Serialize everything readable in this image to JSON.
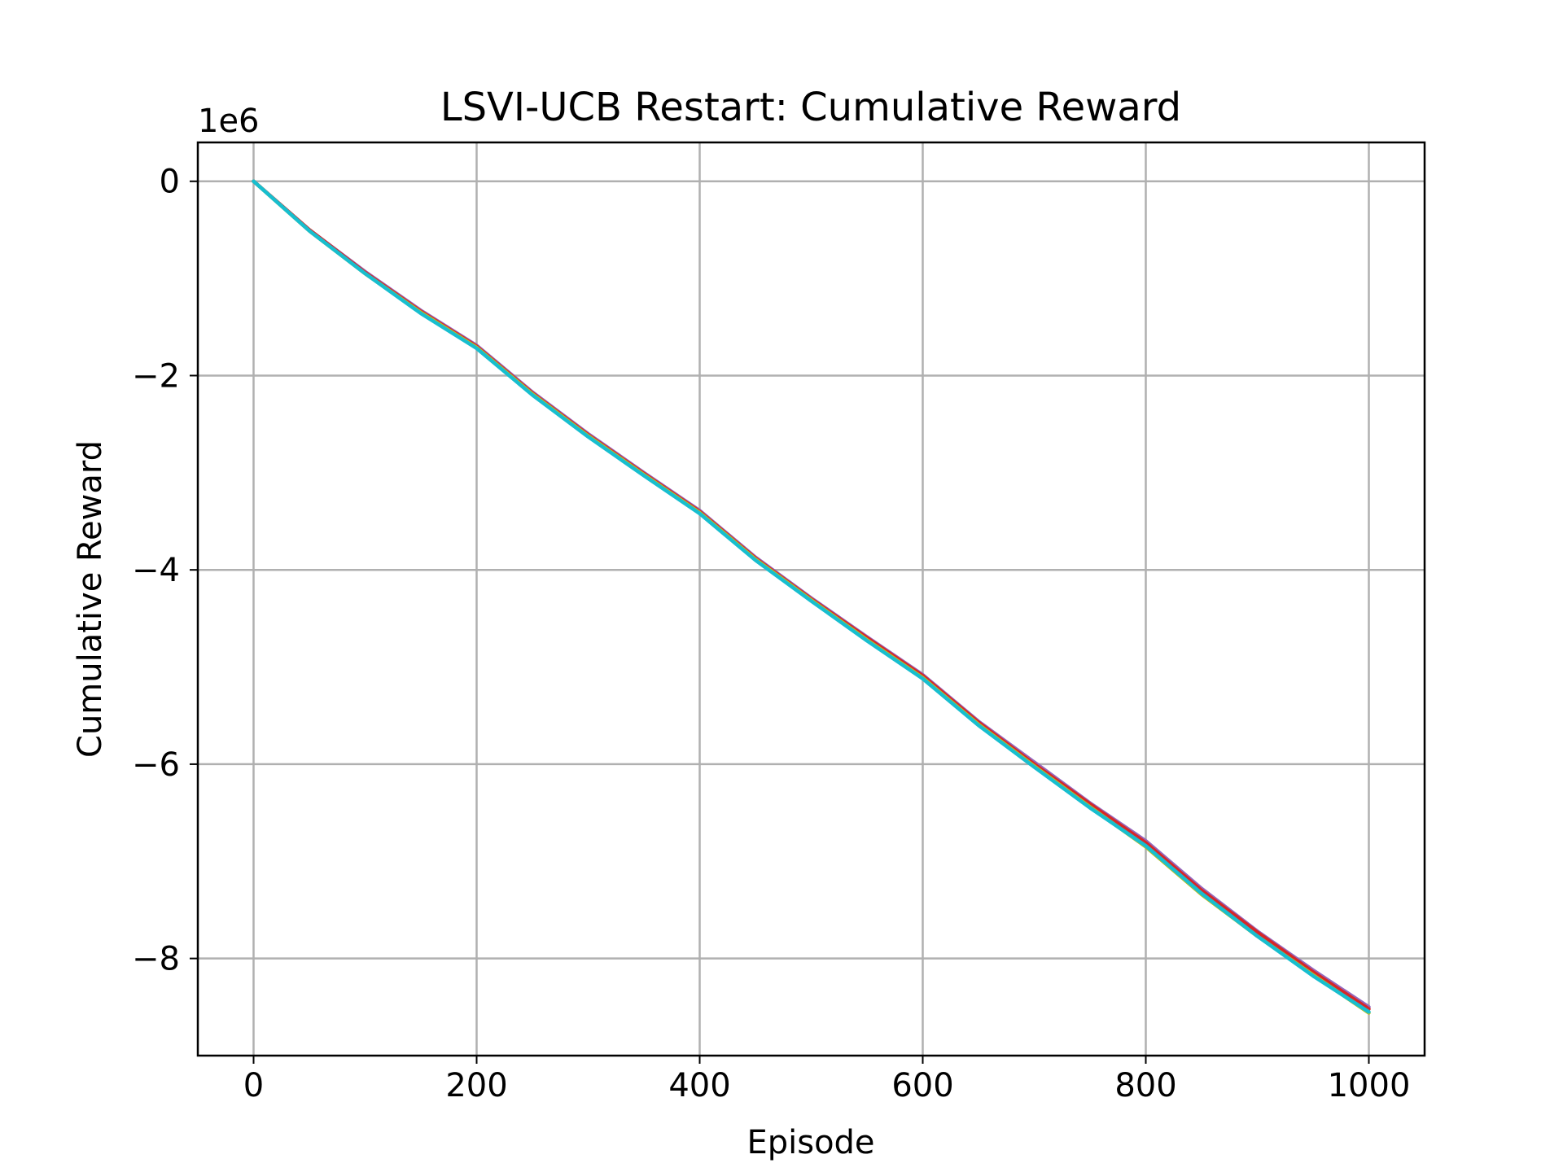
{
  "chart_data": {
    "type": "line",
    "title": "LSVI-UCB Restart: Cumulative Reward",
    "xlabel": "Episode",
    "ylabel": "Cumulative Reward",
    "y_scale_label": "1e6",
    "xlim": [
      -50,
      1050
    ],
    "ylim": [
      -9.0,
      0.4
    ],
    "x_ticks": [
      0,
      200,
      400,
      600,
      800,
      1000
    ],
    "x_tick_labels": [
      "0",
      "200",
      "400",
      "600",
      "800",
      "1000"
    ],
    "y_ticks": [
      0,
      -2,
      -4,
      -6,
      -8
    ],
    "y_tick_labels": [
      "0",
      "−2",
      "−4",
      "−6",
      "−8"
    ],
    "grid": true,
    "legend": "none",
    "series": [
      {
        "color": "#9467bd",
        "x": [
          0,
          50,
          100,
          150,
          200,
          250,
          300,
          350,
          400,
          450,
          500,
          550,
          600,
          650,
          700,
          750,
          800,
          850,
          900,
          950,
          1000
        ],
        "y": [
          0,
          -0.5,
          -0.93,
          -1.33,
          -1.69,
          -2.17,
          -2.6,
          -3.0,
          -3.39,
          -3.87,
          -4.29,
          -4.69,
          -5.08,
          -5.56,
          -5.98,
          -6.4,
          -6.79,
          -7.28,
          -7.72,
          -8.12,
          -8.5
        ]
      },
      {
        "color": "#d62728",
        "x": [
          0,
          50,
          100,
          150,
          200,
          250,
          300,
          350,
          400,
          450,
          500,
          550,
          600,
          650,
          700,
          750,
          800,
          850,
          900,
          950,
          1000
        ],
        "y": [
          0,
          -0.5,
          -0.94,
          -1.34,
          -1.7,
          -2.18,
          -2.61,
          -3.01,
          -3.4,
          -3.88,
          -4.3,
          -4.7,
          -5.09,
          -5.57,
          -6.0,
          -6.41,
          -6.81,
          -7.3,
          -7.73,
          -8.14,
          -8.52
        ]
      },
      {
        "color": "#bcbd22",
        "x": [
          0,
          50,
          100,
          150,
          200,
          250,
          300,
          350,
          400,
          450,
          500,
          550,
          600,
          650,
          700,
          750,
          800,
          850,
          900,
          950,
          1000
        ],
        "y": [
          0,
          -0.51,
          -0.95,
          -1.35,
          -1.71,
          -2.19,
          -2.62,
          -3.02,
          -3.41,
          -3.89,
          -4.31,
          -4.72,
          -5.11,
          -5.59,
          -6.02,
          -6.44,
          -6.85,
          -7.34,
          -7.77,
          -8.17,
          -8.56
        ]
      },
      {
        "color": "#17becf",
        "x": [
          0,
          50,
          100,
          150,
          200,
          250,
          300,
          350,
          400,
          450,
          500,
          550,
          600,
          650,
          700,
          750,
          800,
          850,
          900,
          950,
          1000
        ],
        "y": [
          0,
          -0.51,
          -0.95,
          -1.36,
          -1.72,
          -2.2,
          -2.63,
          -3.03,
          -3.42,
          -3.9,
          -4.32,
          -4.73,
          -5.12,
          -5.6,
          -6.03,
          -6.45,
          -6.84,
          -7.33,
          -7.77,
          -8.18,
          -8.55
        ]
      }
    ]
  }
}
